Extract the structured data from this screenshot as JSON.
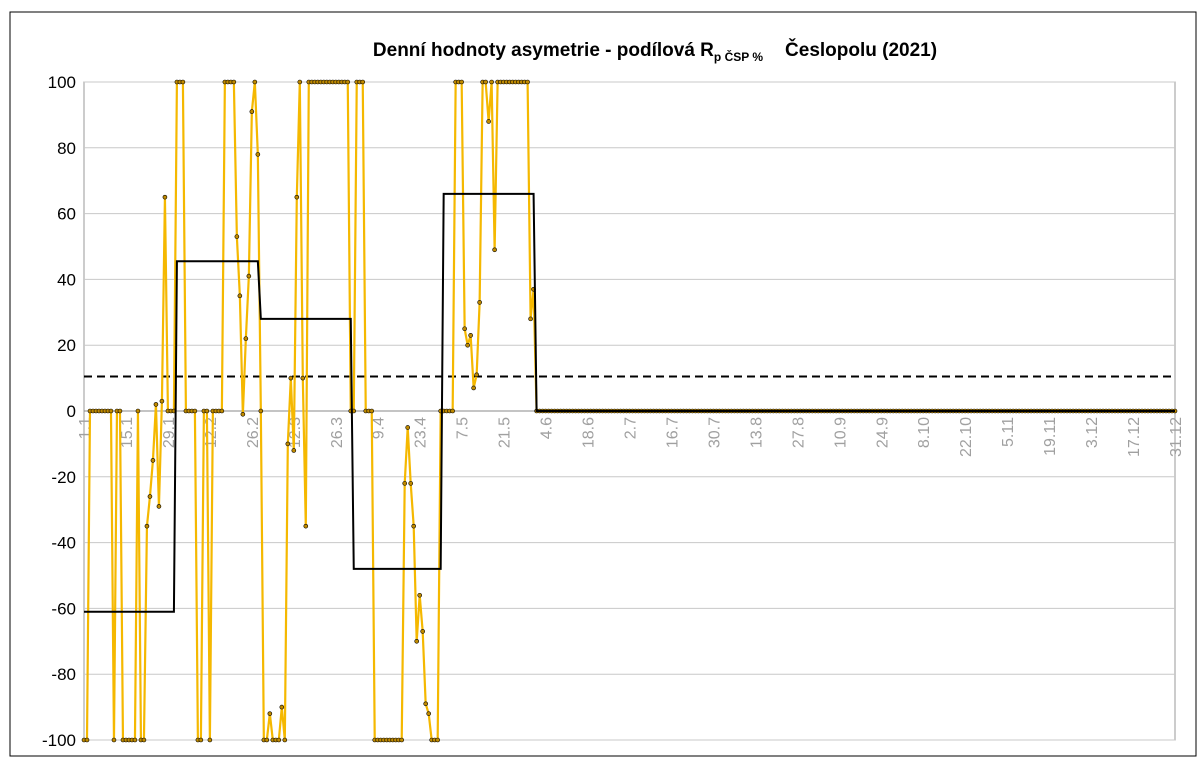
{
  "chart_data": {
    "type": "line",
    "title": "Denní hodnoty asymetrie - podílová R",
    "title_subscript": "p ČSP %",
    "title_end": "Česlopolu (2021)",
    "categories": [
      "1.1",
      null,
      null,
      null,
      null,
      null,
      null,
      null,
      null,
      null,
      null,
      null,
      null,
      null,
      "15.1",
      null,
      null,
      null,
      null,
      null,
      null,
      null,
      null,
      null,
      null,
      null,
      null,
      null,
      "29.1",
      null,
      null,
      null,
      null,
      null,
      null,
      null,
      null,
      null,
      null,
      null,
      null,
      null,
      "12.2",
      null,
      null,
      null,
      null,
      null,
      null,
      null,
      null,
      null,
      null,
      null,
      null,
      null,
      "26.2",
      null,
      null,
      null,
      null,
      null,
      null,
      null,
      null,
      null,
      null,
      null,
      null,
      null,
      "12.3",
      null,
      null,
      null,
      null,
      null,
      null,
      null,
      null,
      null,
      null,
      null,
      null,
      null,
      "26.3",
      null,
      null,
      null,
      null,
      null,
      null,
      null,
      null,
      null,
      null,
      null,
      null,
      null,
      "9.4",
      null,
      null,
      null,
      null,
      null,
      null,
      null,
      null,
      null,
      null,
      null,
      null,
      null,
      "23.4",
      null,
      null,
      null,
      null,
      null,
      null,
      null,
      null,
      null,
      null,
      null,
      null,
      null,
      "7.5",
      null,
      null,
      null,
      null,
      null,
      null,
      null,
      null,
      null,
      null,
      null,
      null,
      null,
      "21.5",
      null,
      null,
      null,
      null,
      null,
      null,
      null,
      null,
      null,
      null,
      null,
      null,
      null,
      "4.6",
      null,
      null,
      null,
      null,
      null,
      null,
      null,
      null,
      null,
      null,
      null,
      null,
      null,
      "18.6",
      null,
      null,
      null,
      null,
      null,
      null,
      null,
      null,
      null,
      null,
      null,
      null,
      null,
      "2.7",
      null,
      null,
      null,
      null,
      null,
      null,
      null,
      null,
      null,
      null,
      null,
      null,
      null,
      "16.7",
      null,
      null,
      null,
      null,
      null,
      null,
      null,
      null,
      null,
      null,
      null,
      null,
      null,
      "30.7",
      null,
      null,
      null,
      null,
      null,
      null,
      null,
      null,
      null,
      null,
      null,
      null,
      null,
      "13.8",
      null,
      null,
      null,
      null,
      null,
      null,
      null,
      null,
      null,
      null,
      null,
      null,
      null,
      "27.8",
      null,
      null,
      null,
      null,
      null,
      null,
      null,
      null,
      null,
      null,
      null,
      null,
      null,
      "10.9",
      null,
      null,
      null,
      null,
      null,
      null,
      null,
      null,
      null,
      null,
      null,
      null,
      null,
      "24.9",
      null,
      null,
      null,
      null,
      null,
      null,
      null,
      null,
      null,
      null,
      null,
      null,
      null,
      "8.10",
      null,
      null,
      null,
      null,
      null,
      null,
      null,
      null,
      null,
      null,
      null,
      null,
      null,
      "22.10",
      null,
      null,
      null,
      null,
      null,
      null,
      null,
      null,
      null,
      null,
      null,
      null,
      null,
      "5.11",
      null,
      null,
      null,
      null,
      null,
      null,
      null,
      null,
      null,
      null,
      null,
      null,
      null,
      "19.11",
      null,
      null,
      null,
      null,
      null,
      null,
      null,
      null,
      null,
      null,
      null,
      null,
      null,
      "3.12",
      null,
      null,
      null,
      null,
      null,
      null,
      null,
      null,
      null,
      null,
      null,
      null,
      null,
      "17.12",
      null,
      null,
      null,
      null,
      null,
      null,
      null,
      null,
      null,
      null,
      null,
      null,
      null,
      "31.12"
    ],
    "series": [
      {
        "color": "#f5b800",
        "marker_color": "#c08a00",
        "markers": true,
        "values": [
          -100,
          -100,
          0,
          0,
          0,
          0,
          0,
          0,
          0,
          0,
          -100,
          0,
          0,
          -100,
          -100,
          -100,
          -100,
          -100,
          0,
          -100,
          -100,
          -35,
          -26,
          -15,
          2,
          -29,
          3,
          65,
          0,
          0,
          0,
          100,
          100,
          100,
          0,
          0,
          0,
          0,
          -100,
          -100,
          0,
          0,
          -100,
          0,
          0,
          0,
          0,
          100,
          100,
          100,
          100,
          53,
          35,
          -1,
          22,
          41,
          91,
          100,
          78,
          0,
          -100,
          -100,
          -92,
          -100,
          -100,
          -100,
          -90,
          -100,
          -10,
          10,
          -12,
          65,
          100,
          10,
          -35,
          100,
          100,
          100,
          100,
          100,
          100,
          100,
          100,
          100,
          100,
          100,
          100,
          100,
          100,
          0,
          0,
          100,
          100,
          100,
          0,
          0,
          0,
          -100,
          -100,
          -100,
          -100,
          -100,
          -100,
          -100,
          -100,
          -100,
          -100,
          -22,
          -5,
          -22,
          -35,
          -70,
          -56,
          -67,
          -89,
          -92,
          -100,
          -100,
          -100,
          0,
          0,
          0,
          0,
          0,
          100,
          100,
          100,
          25,
          20,
          23,
          7,
          11,
          33,
          100,
          100,
          88,
          100,
          49,
          100,
          100,
          100,
          100,
          100,
          100,
          100,
          100,
          100,
          100,
          100,
          28,
          37,
          0,
          0,
          0,
          0,
          0,
          0,
          0,
          0,
          0,
          0,
          0,
          0,
          0,
          0,
          0,
          0,
          0,
          0,
          0,
          0,
          0,
          0,
          0,
          0,
          0,
          0,
          0,
          0,
          0,
          0,
          0,
          0,
          0,
          0,
          0,
          0,
          0,
          0,
          0,
          0,
          0,
          0,
          0,
          0,
          0,
          0,
          0,
          0,
          0,
          0,
          0,
          0,
          0,
          0,
          0,
          0,
          0,
          0,
          0,
          0,
          0,
          0,
          0,
          0,
          0,
          0,
          0,
          0,
          0,
          0,
          0,
          0,
          0,
          0,
          0,
          0,
          0,
          0,
          0,
          0,
          0,
          0,
          0,
          0,
          0,
          0,
          0,
          0,
          0,
          0,
          0,
          0,
          0,
          0,
          0,
          0,
          0,
          0,
          0,
          0,
          0,
          0,
          0,
          0,
          0,
          0,
          0,
          0,
          0,
          0,
          0,
          0,
          0,
          0,
          0,
          0,
          0,
          0,
          0,
          0,
          0,
          0,
          0,
          0,
          0,
          0,
          0,
          0,
          0,
          0,
          0,
          0,
          0,
          0,
          0,
          0,
          0,
          0,
          0,
          0,
          0,
          0,
          0,
          0,
          0,
          0,
          0,
          0,
          0,
          0,
          0,
          0,
          0,
          0,
          0,
          0,
          0,
          0,
          0,
          0,
          0,
          0,
          0,
          0,
          0,
          0,
          0,
          0,
          0,
          0,
          0,
          0,
          0,
          0,
          0,
          0,
          0,
          0,
          0,
          0,
          0,
          0,
          0,
          0,
          0,
          0,
          0,
          0,
          0,
          0,
          0,
          0,
          0,
          0,
          0,
          0,
          0,
          0,
          0,
          0,
          0,
          0,
          0,
          0,
          0,
          0,
          0,
          0,
          0,
          0,
          0,
          0,
          0,
          0
        ]
      },
      {
        "color": "#000000",
        "markers": false,
        "values": [
          -61,
          -61,
          -61,
          -61,
          -61,
          -61,
          -61,
          -61,
          -61,
          -61,
          -61,
          -61,
          -61,
          -61,
          -61,
          -61,
          -61,
          -61,
          -61,
          -61,
          -61,
          -61,
          -61,
          -61,
          -61,
          -61,
          -61,
          -61,
          -61,
          -61,
          -61,
          45.5,
          45.5,
          45.5,
          45.5,
          45.5,
          45.5,
          45.5,
          45.5,
          45.5,
          45.5,
          45.5,
          45.5,
          45.5,
          45.5,
          45.5,
          45.5,
          45.5,
          45.5,
          45.5,
          45.5,
          45.5,
          45.5,
          45.5,
          45.5,
          45.5,
          45.5,
          45.5,
          45.5,
          28,
          28,
          28,
          28,
          28,
          28,
          28,
          28,
          28,
          28,
          28,
          28,
          28,
          28,
          28,
          28,
          28,
          28,
          28,
          28,
          28,
          28,
          28,
          28,
          28,
          28,
          28,
          28,
          28,
          28,
          28,
          -48,
          -48,
          -48,
          -48,
          -48,
          -48,
          -48,
          -48,
          -48,
          -48,
          -48,
          -48,
          -48,
          -48,
          -48,
          -48,
          -48,
          -48,
          -48,
          -48,
          -48,
          -48,
          -48,
          -48,
          -48,
          -48,
          -48,
          -48,
          -48,
          -48,
          66,
          66,
          66,
          66,
          66,
          66,
          66,
          66,
          66,
          66,
          66,
          66,
          66,
          66,
          66,
          66,
          66,
          66,
          66,
          66,
          66,
          66,
          66,
          66,
          66,
          66,
          66,
          66,
          66,
          66,
          66,
          0,
          0,
          0,
          0,
          0,
          0,
          0,
          0,
          0,
          0,
          0,
          0,
          0,
          0,
          0,
          0,
          0,
          0,
          0,
          0,
          0,
          0,
          0,
          0,
          0,
          0,
          0,
          0,
          0,
          0,
          0,
          0,
          0,
          0,
          0,
          0,
          0,
          0,
          0,
          0,
          0,
          0,
          0,
          0,
          0,
          0,
          0,
          0,
          0,
          0,
          0,
          0,
          0,
          0,
          0,
          0,
          0,
          0,
          0,
          0,
          0,
          0,
          0,
          0,
          0,
          0,
          0,
          0,
          0,
          0,
          0,
          0,
          0,
          0,
          0,
          0,
          0,
          0,
          0,
          0,
          0,
          0,
          0,
          0,
          0,
          0,
          0,
          0,
          0,
          0,
          0,
          0,
          0,
          0,
          0,
          0,
          0,
          0,
          0,
          0,
          0,
          0,
          0,
          0,
          0,
          0,
          0,
          0,
          0,
          0,
          0,
          0,
          0,
          0,
          0,
          0,
          0,
          0,
          0,
          0,
          0,
          0,
          0,
          0,
          0,
          0,
          0,
          0,
          0,
          0,
          0,
          0,
          0,
          0,
          0,
          0,
          0,
          0,
          0,
          0,
          0,
          0,
          0,
          0,
          0,
          0,
          0,
          0,
          0,
          0,
          0,
          0,
          0,
          0,
          0,
          0,
          0,
          0,
          0,
          0,
          0,
          0,
          0,
          0,
          0,
          0,
          0,
          0,
          0,
          0,
          0,
          0,
          0,
          0,
          0,
          0,
          0,
          0,
          0,
          0,
          0,
          0,
          0,
          0,
          0,
          0,
          0,
          0,
          0,
          0,
          0,
          0,
          0,
          0,
          0,
          0,
          0,
          0,
          0,
          0,
          0,
          0,
          0,
          0,
          0,
          0,
          0,
          0,
          0,
          0,
          0,
          0,
          0,
          0
        ]
      }
    ],
    "reference_line": {
      "value": 10.5,
      "color": "#000000",
      "dashed": true
    },
    "ylim": [
      -100,
      100
    ],
    "yticks": [
      -100,
      -80,
      -60,
      -40,
      -20,
      0,
      20,
      40,
      60,
      80,
      100
    ],
    "grid": true
  }
}
